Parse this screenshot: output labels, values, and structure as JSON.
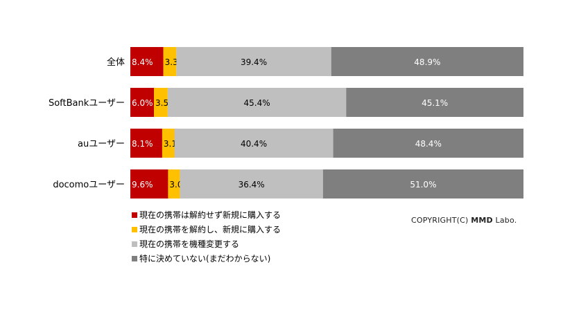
{
  "chart_data": {
    "type": "bar",
    "orientation": "horizontal",
    "stacked": "100%",
    "categories": [
      "全体",
      "SoftBankユーザー",
      "auユーザー",
      "docomoユーザー"
    ],
    "series": [
      {
        "name": "現在の携帯は解約せず新規に購入する",
        "color": "#c00000",
        "values": [
          8.4,
          6.0,
          8.1,
          9.6
        ]
      },
      {
        "name": "現在の携帯を解約し、新規に購入する",
        "color": "#ffc000",
        "values": [
          3.3,
          3.5,
          3.1,
          3.0
        ]
      },
      {
        "name": "現在の携帯を機種変更する",
        "color": "#bfbfbf",
        "values": [
          39.4,
          45.4,
          40.4,
          36.4
        ]
      },
      {
        "name": "特に決めていない(まだわからない)",
        "color": "#7f7f7f",
        "values": [
          48.9,
          45.1,
          48.4,
          51.0
        ]
      }
    ],
    "value_labels": [
      [
        "8.4%",
        "3.3%",
        "39.4%",
        "48.9%"
      ],
      [
        "6.0%",
        "3.5%",
        "45.4%",
        "45.1%"
      ],
      [
        "8.1%",
        "3.1%",
        "40.4%",
        "48.4%"
      ],
      [
        "9.6%",
        "3.0%",
        "36.4%",
        "51.0%"
      ]
    ],
    "xlim": [
      0,
      100
    ],
    "legend_position": "bottom-left",
    "grid": false
  },
  "copyright": {
    "prefix": "COPYRIGHT(C) ",
    "brand": "MMD",
    "suffix": " Labo."
  }
}
